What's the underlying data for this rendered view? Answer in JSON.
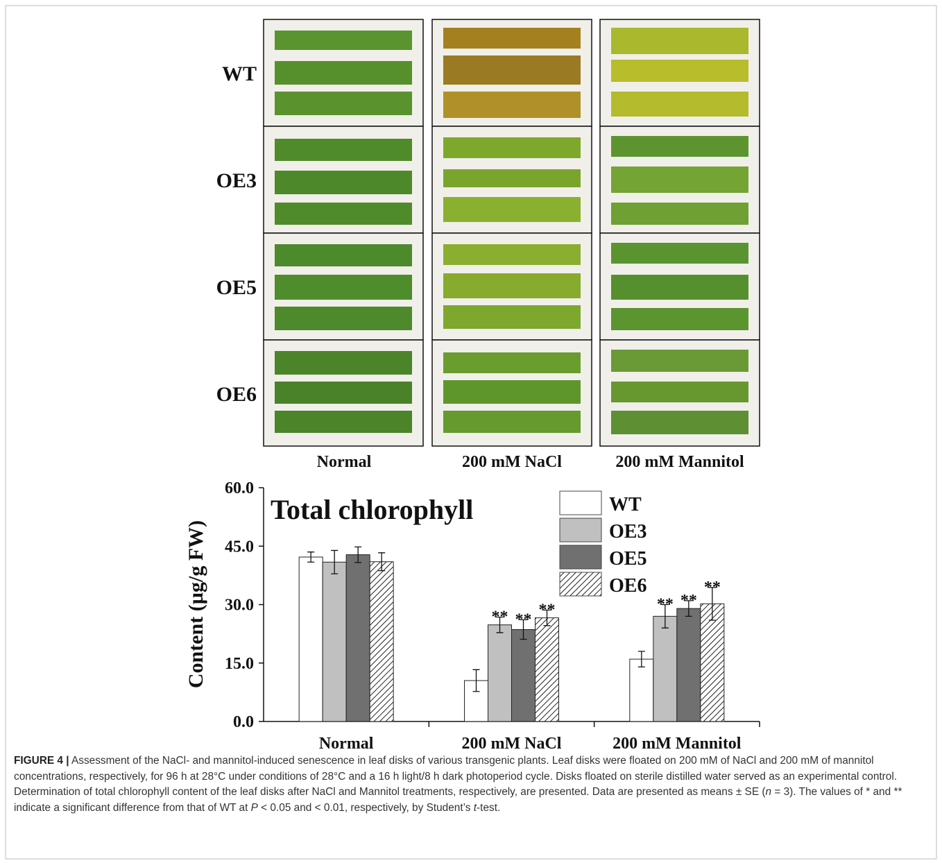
{
  "photo_grid": {
    "row_labels": [
      "WT",
      "OE3",
      "OE5",
      "OE6"
    ],
    "column_labels": [
      "Normal",
      "200 mM NaCl",
      "200 mM Mannitol"
    ]
  },
  "chart_data": {
    "type": "bar",
    "title": "Total chlorophyll",
    "y_label": "Content (µg/g FW)",
    "categories": [
      "Normal",
      "200 mM NaCl",
      "200 mM Mannitol"
    ],
    "series": [
      {
        "name": "WT",
        "color": "#ffffff",
        "values": [
          42.2,
          10.5,
          16.0
        ],
        "errors": [
          1.3,
          2.8,
          2.0
        ],
        "significance": [
          null,
          null,
          null
        ]
      },
      {
        "name": "OE3",
        "color": "#c0c0c0",
        "values": [
          40.9,
          24.8,
          27.0
        ],
        "errors": [
          3.0,
          2.0,
          3.0
        ],
        "significance": [
          null,
          "**",
          "**"
        ]
      },
      {
        "name": "OE5",
        "color": "#707070",
        "values": [
          42.8,
          23.6,
          29.0
        ],
        "errors": [
          2.0,
          2.5,
          2.0
        ],
        "significance": [
          null,
          "**",
          "**"
        ]
      },
      {
        "name": "OE6",
        "color": "#ffffff",
        "hatch": true,
        "values": [
          41.0,
          26.6,
          30.2
        ],
        "errors": [
          2.3,
          2.0,
          4.2
        ],
        "significance": [
          null,
          "**",
          "**"
        ]
      }
    ],
    "ylim": [
      0,
      60
    ],
    "yticks": [
      {
        "value": 0,
        "label": "0.0"
      },
      {
        "value": 15,
        "label": "15.0"
      },
      {
        "value": 30,
        "label": "30.0"
      },
      {
        "value": 45,
        "label": "45.0"
      },
      {
        "value": 60,
        "label": "60.0"
      }
    ],
    "legend": "upper right"
  },
  "caption": {
    "label": "FIGURE 4 |",
    "parts": [
      {
        "text": " Assessment of the NaCl- and mannitol-induced senescence in leaf disks of various transgenic plants. Leaf disks were floated on 200 mM of NaCl and 200 mM of mannitol concentrations, respectively, for 96 h at 28°C under conditions of 28°C and a 16 h light/8 h dark photoperiod cycle. Disks floated on sterile distilled water served as an experimental control. Determination of total chlorophyll content of the leaf disks after NaCl and Mannitol treatments, respectively, are presented. Data are presented as means ± SE ("
      },
      {
        "text": "n",
        "italic": true
      },
      {
        "text": " = 3). The values of * and ** indicate a significant difference from that of WT at "
      },
      {
        "text": "P",
        "italic": true
      },
      {
        "text": " < 0.05 and < 0.01, respectively, by Student’s "
      },
      {
        "text": "t",
        "italic": true
      },
      {
        "text": "-test."
      }
    ]
  }
}
